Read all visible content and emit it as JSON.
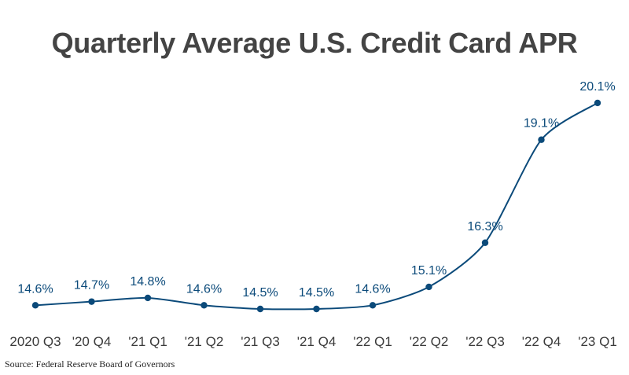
{
  "chart_data": {
    "type": "line",
    "title": "Quarterly Average U.S. Credit Card APR",
    "categories": [
      "2020 Q3",
      "'20 Q4",
      "'21 Q1",
      "'21 Q2",
      "'21 Q3",
      "'21 Q4",
      "'22 Q1",
      "'22 Q2",
      "'22 Q3",
      "'22 Q4",
      "'23 Q1"
    ],
    "values": [
      14.6,
      14.7,
      14.8,
      14.6,
      14.5,
      14.5,
      14.6,
      15.1,
      16.3,
      19.1,
      20.1
    ],
    "data_labels": [
      "14.6%",
      "14.7%",
      "14.8%",
      "14.6%",
      "14.5%",
      "14.5%",
      "14.6%",
      "15.1%",
      "16.3%",
      "19.1%",
      "20.1%"
    ],
    "xlabel": "",
    "ylabel": "",
    "grid": false,
    "legend": "none",
    "color": "#0b4a7a"
  },
  "source": "Source: Federal Reserve Board of Governors"
}
